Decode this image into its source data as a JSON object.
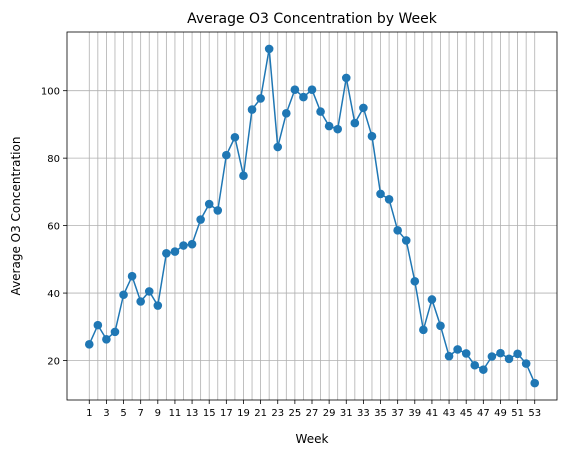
{
  "chart_data": {
    "type": "line",
    "title": "Average O3 Concentration by Week",
    "xlabel": "Week",
    "ylabel": "Average O3 Concentration",
    "x": [
      1,
      2,
      3,
      4,
      5,
      6,
      7,
      8,
      9,
      10,
      11,
      12,
      13,
      14,
      15,
      16,
      17,
      18,
      19,
      20,
      21,
      22,
      23,
      24,
      25,
      26,
      27,
      28,
      29,
      30,
      31,
      32,
      33,
      34,
      35,
      36,
      37,
      38,
      39,
      40,
      41,
      42,
      43,
      44,
      45,
      46,
      47,
      48,
      49,
      50,
      51,
      52,
      53
    ],
    "series": [
      {
        "name": "",
        "values": [
          24.8,
          30.5,
          26.3,
          28.5,
          39.5,
          45.0,
          37.5,
          40.5,
          36.3,
          51.8,
          52.3,
          54.1,
          54.5,
          61.8,
          66.4,
          64.5,
          80.9,
          86.2,
          74.8,
          94.4,
          97.7,
          112.4,
          83.3,
          93.3,
          100.3,
          98.1,
          100.3,
          93.8,
          89.5,
          88.6,
          103.8,
          90.4,
          94.9,
          86.5,
          69.4,
          67.8,
          58.6,
          55.6,
          43.5,
          29.1,
          38.1,
          30.3,
          21.3,
          23.3,
          22.1,
          18.6,
          17.3,
          21.2,
          22.2,
          20.5,
          22.0,
          19.1,
          13.3
        ]
      }
    ],
    "xticks": [
      1,
      3,
      5,
      7,
      9,
      11,
      13,
      15,
      17,
      19,
      21,
      23,
      25,
      27,
      29,
      31,
      33,
      35,
      37,
      39,
      41,
      43,
      45,
      47,
      49,
      51,
      53
    ],
    "yticks": [
      20,
      40,
      60,
      80,
      100
    ],
    "xlim": [
      -1.6,
      55.6
    ],
    "ylim": [
      8.3,
      117.4
    ],
    "grid": true,
    "color": "#1f77b4"
  }
}
